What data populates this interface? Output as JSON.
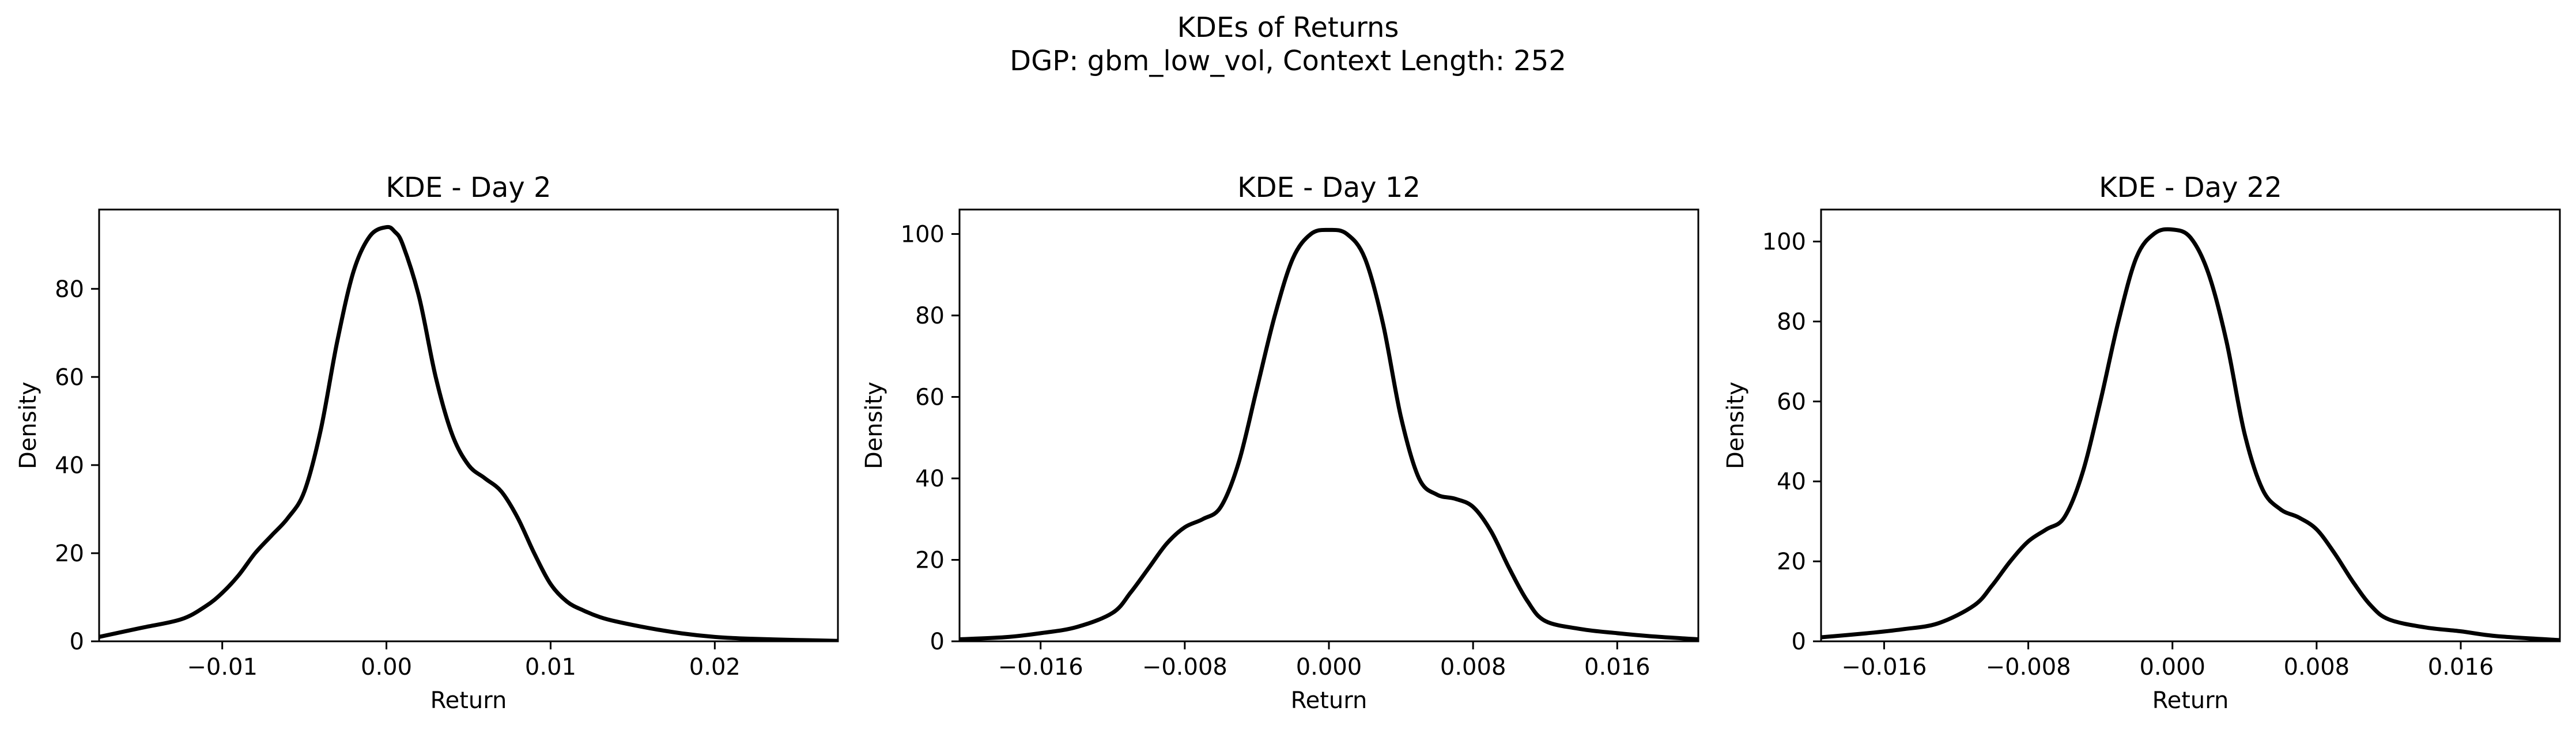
{
  "figure": {
    "title_line1": "KDEs of Returns",
    "title_line2": "DGP: gbm_low_vol, Context Length: 252"
  },
  "chart_data": [
    {
      "type": "line",
      "title": "KDE - Day 2",
      "xlabel": "Return",
      "ylabel": "Density",
      "xlim": [
        -0.0175,
        0.0275
      ],
      "ylim": [
        0,
        98
      ],
      "xticks": [
        -0.01,
        0.0,
        0.01,
        0.02
      ],
      "xtick_labels": [
        "−0.01",
        "0.00",
        "0.01",
        "0.02"
      ],
      "yticks": [
        0,
        20,
        40,
        60,
        80
      ],
      "ytick_labels": [
        "0",
        "20",
        "40",
        "60",
        "80"
      ],
      "grid": false,
      "series": [
        {
          "color": "#000000",
          "x": [
            -0.0175,
            -0.015,
            -0.0125,
            -0.011,
            -0.01,
            -0.009,
            -0.008,
            -0.007,
            -0.006,
            -0.005,
            -0.004,
            -0.003,
            -0.002,
            -0.001,
            0.0,
            0.0005,
            0.001,
            0.002,
            0.003,
            0.004,
            0.005,
            0.006,
            0.007,
            0.008,
            0.009,
            0.01,
            0.011,
            0.012,
            0.013,
            0.014,
            0.016,
            0.018,
            0.02,
            0.022,
            0.025,
            0.0275
          ],
          "y": [
            1,
            3,
            5,
            8,
            11,
            15,
            20,
            24,
            28,
            34,
            48,
            68,
            84,
            92,
            94,
            93,
            90,
            78,
            60,
            47,
            40,
            37,
            34,
            28,
            20,
            13,
            9,
            7,
            5.5,
            4.5,
            3,
            1.8,
            1,
            0.6,
            0.3,
            0.1
          ]
        }
      ]
    },
    {
      "type": "line",
      "title": "KDE - Day 12",
      "xlabel": "Return",
      "ylabel": "Density",
      "xlim": [
        -0.0205,
        0.0205
      ],
      "ylim": [
        0,
        106
      ],
      "xticks": [
        -0.016,
        -0.008,
        0.0,
        0.008,
        0.016
      ],
      "xtick_labels": [
        "−0.016",
        "−0.008",
        "0.000",
        "0.008",
        "0.016"
      ],
      "yticks": [
        0,
        20,
        40,
        60,
        80,
        100
      ],
      "ytick_labels": [
        "0",
        "20",
        "40",
        "60",
        "80",
        "100"
      ],
      "grid": false,
      "series": [
        {
          "color": "#000000",
          "x": [
            -0.0205,
            -0.018,
            -0.016,
            -0.014,
            -0.012,
            -0.011,
            -0.01,
            -0.009,
            -0.008,
            -0.007,
            -0.006,
            -0.005,
            -0.004,
            -0.003,
            -0.002,
            -0.001,
            0.0,
            0.001,
            0.002,
            0.003,
            0.004,
            0.005,
            0.006,
            0.007,
            0.008,
            0.009,
            0.01,
            0.011,
            0.012,
            0.014,
            0.016,
            0.018,
            0.0205
          ],
          "y": [
            0.5,
            1,
            2,
            3.5,
            7,
            12,
            18,
            24,
            28,
            30,
            33,
            44,
            62,
            80,
            94,
            100,
            101,
            100,
            94,
            78,
            55,
            40,
            36,
            35,
            33,
            27,
            18,
            10,
            5,
            3,
            2,
            1.2,
            0.5
          ]
        }
      ]
    },
    {
      "type": "line",
      "title": "KDE - Day 22",
      "xlabel": "Return",
      "ylabel": "Density",
      "xlim": [
        -0.0195,
        0.0215
      ],
      "ylim": [
        0,
        108
      ],
      "xticks": [
        -0.016,
        -0.008,
        0.0,
        0.008,
        0.016
      ],
      "xtick_labels": [
        "−0.016",
        "−0.008",
        "0.000",
        "0.008",
        "0.016"
      ],
      "yticks": [
        0,
        20,
        40,
        60,
        80,
        100
      ],
      "ytick_labels": [
        "0",
        "20",
        "40",
        "60",
        "80",
        "100"
      ],
      "grid": false,
      "series": [
        {
          "color": "#000000",
          "x": [
            -0.0195,
            -0.017,
            -0.015,
            -0.013,
            -0.011,
            -0.01,
            -0.009,
            -0.008,
            -0.007,
            -0.006,
            -0.005,
            -0.004,
            -0.003,
            -0.002,
            -0.001,
            0.0,
            0.001,
            0.002,
            0.003,
            0.004,
            0.005,
            0.006,
            0.007,
            0.008,
            0.009,
            0.01,
            0.011,
            0.012,
            0.014,
            0.016,
            0.018,
            0.0215
          ],
          "y": [
            1,
            2,
            3,
            4.5,
            9,
            14,
            20,
            25,
            28,
            31,
            42,
            60,
            80,
            96,
            102,
            103,
            101,
            92,
            75,
            52,
            38,
            33,
            31,
            28,
            22,
            15,
            9,
            5.5,
            3.5,
            2.5,
            1.3,
            0.3
          ]
        }
      ]
    }
  ]
}
